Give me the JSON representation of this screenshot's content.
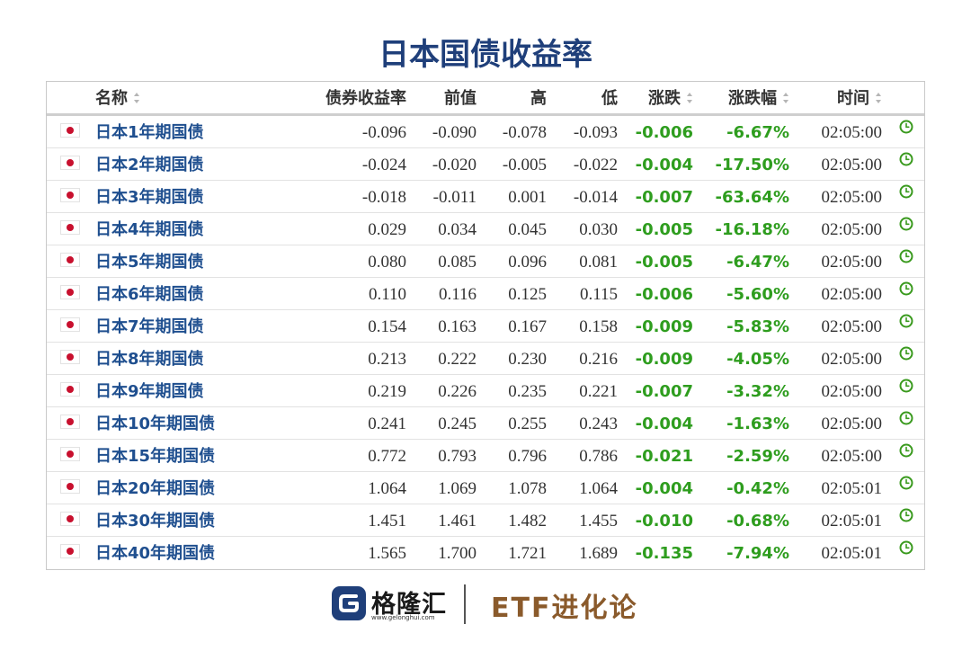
{
  "page": {
    "title": "日本国债收益率"
  },
  "table": {
    "headers": {
      "name": "名称",
      "yield": "债券收益率",
      "prev": "前值",
      "high": "高",
      "low": "低",
      "change": "涨跌",
      "change_pct": "涨跌幅",
      "time": "时间"
    },
    "sortable": [
      "name",
      "change",
      "change_pct",
      "time"
    ],
    "rows": [
      {
        "name": "日本1年期国债",
        "yield": "-0.096",
        "prev": "-0.090",
        "high": "-0.078",
        "low": "-0.093",
        "change": "-0.006",
        "change_pct": "-6.67%",
        "time": "02:05:00"
      },
      {
        "name": "日本2年期国债",
        "yield": "-0.024",
        "prev": "-0.020",
        "high": "-0.005",
        "low": "-0.022",
        "change": "-0.004",
        "change_pct": "-17.50%",
        "time": "02:05:00"
      },
      {
        "name": "日本3年期国债",
        "yield": "-0.018",
        "prev": "-0.011",
        "high": "0.001",
        "low": "-0.014",
        "change": "-0.007",
        "change_pct": "-63.64%",
        "time": "02:05:00"
      },
      {
        "name": "日本4年期国债",
        "yield": "0.029",
        "prev": "0.034",
        "high": "0.045",
        "low": "0.030",
        "change": "-0.005",
        "change_pct": "-16.18%",
        "time": "02:05:00"
      },
      {
        "name": "日本5年期国债",
        "yield": "0.080",
        "prev": "0.085",
        "high": "0.096",
        "low": "0.081",
        "change": "-0.005",
        "change_pct": "-6.47%",
        "time": "02:05:00"
      },
      {
        "name": "日本6年期国债",
        "yield": "0.110",
        "prev": "0.116",
        "high": "0.125",
        "low": "0.115",
        "change": "-0.006",
        "change_pct": "-5.60%",
        "time": "02:05:00"
      },
      {
        "name": "日本7年期国债",
        "yield": "0.154",
        "prev": "0.163",
        "high": "0.167",
        "low": "0.158",
        "change": "-0.009",
        "change_pct": "-5.83%",
        "time": "02:05:00"
      },
      {
        "name": "日本8年期国债",
        "yield": "0.213",
        "prev": "0.222",
        "high": "0.230",
        "low": "0.216",
        "change": "-0.009",
        "change_pct": "-4.05%",
        "time": "02:05:00"
      },
      {
        "name": "日本9年期国债",
        "yield": "0.219",
        "prev": "0.226",
        "high": "0.235",
        "low": "0.221",
        "change": "-0.007",
        "change_pct": "-3.32%",
        "time": "02:05:00"
      },
      {
        "name": "日本10年期国债",
        "yield": "0.241",
        "prev": "0.245",
        "high": "0.255",
        "low": "0.243",
        "change": "-0.004",
        "change_pct": "-1.63%",
        "time": "02:05:00"
      },
      {
        "name": "日本15年期国债",
        "yield": "0.772",
        "prev": "0.793",
        "high": "0.796",
        "low": "0.786",
        "change": "-0.021",
        "change_pct": "-2.59%",
        "time": "02:05:00"
      },
      {
        "name": "日本20年期国债",
        "yield": "1.064",
        "prev": "1.069",
        "high": "1.078",
        "low": "1.064",
        "change": "-0.004",
        "change_pct": "-0.42%",
        "time": "02:05:01"
      },
      {
        "name": "日本30年期国债",
        "yield": "1.451",
        "prev": "1.461",
        "high": "1.482",
        "low": "1.455",
        "change": "-0.010",
        "change_pct": "-0.68%",
        "time": "02:05:01"
      },
      {
        "name": "日本40年期国债",
        "yield": "1.565",
        "prev": "1.700",
        "high": "1.721",
        "low": "1.689",
        "change": "-0.135",
        "change_pct": "-7.94%",
        "time": "02:05:01"
      }
    ],
    "row_icons": {
      "flag": "japan-flag-icon",
      "status": "clock-icon"
    }
  },
  "footer": {
    "logo_text": "格隆汇",
    "logo_url": "www.gelonghui.com",
    "brand": "ETF进化论"
  },
  "colors": {
    "title": "#1f3f7a",
    "name_link": "#1f4f8f",
    "negative_change": "#2e9d1e",
    "clock_icon": "#3a9a1e",
    "brand": "#8a5a2b"
  }
}
